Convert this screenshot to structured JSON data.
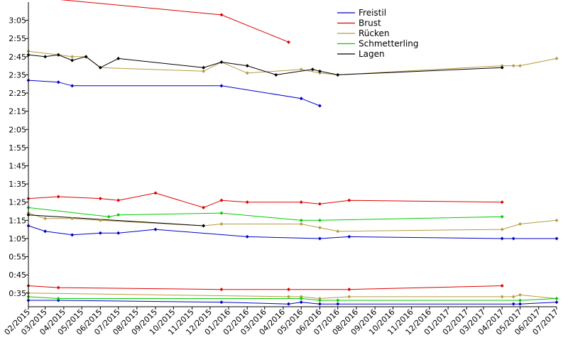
{
  "chart_data": {
    "type": "line",
    "xlabel": "",
    "ylabel": "",
    "x_ticks": [
      "02/2015",
      "03/2015",
      "04/2015",
      "05/2015",
      "06/2015",
      "07/2015",
      "08/2015",
      "09/2015",
      "10/2015",
      "11/2015",
      "12/2015",
      "01/2016",
      "02/2016",
      "03/2016",
      "04/2016",
      "05/2016",
      "06/2016",
      "07/2016",
      "08/2016",
      "09/2016",
      "10/2016",
      "11/2016",
      "12/2016",
      "01/2017",
      "02/2017",
      "03/2017",
      "04/2017",
      "05/2017",
      "06/2017",
      "07/2017"
    ],
    "y_ticks": [
      "0:35",
      "0:45",
      "0:55",
      "1:05",
      "1:15",
      "1:25",
      "1:35",
      "1:45",
      "1:55",
      "2:05",
      "2:15",
      "2:25",
      "2:35",
      "2:45",
      "2:55",
      "3:05"
    ],
    "x_range": [
      "2015-02-01",
      "2017-07-01"
    ],
    "y_range_seconds": [
      27.5,
      195
    ],
    "grid": false,
    "legend_position": "top-right",
    "legend": [
      "Freistil",
      "Brust",
      "Rücken",
      "Schmetterling",
      "Lagen"
    ],
    "series": [
      {
        "name": "Freistil",
        "color": "#0000cc",
        "points": [
          [
            "2015-02-01",
            152
          ],
          [
            "2015-03-23",
            151
          ],
          [
            "2015-04-15",
            149
          ],
          [
            "2015-12-20",
            149
          ],
          [
            "2016-05-01",
            142
          ],
          [
            "2016-06-01",
            138
          ]
        ]
      },
      {
        "name": "Brust",
        "color": "#e00000",
        "points": [
          [
            "2015-02-01",
            198
          ],
          [
            "2015-12-20",
            188
          ],
          [
            "2016-04-10",
            173
          ]
        ]
      },
      {
        "name": "Rücken",
        "color": "#b89a40",
        "points": [
          [
            "2015-02-01",
            168
          ],
          [
            "2015-03-23",
            166
          ],
          [
            "2015-04-15",
            165
          ],
          [
            "2015-05-08",
            165
          ],
          [
            "2015-06-01",
            159
          ],
          [
            "2015-11-20",
            157
          ],
          [
            "2015-12-20",
            162
          ],
          [
            "2016-02-01",
            156
          ],
          [
            "2016-05-01",
            158
          ],
          [
            "2016-06-01",
            156
          ],
          [
            "2016-07-01",
            155
          ],
          [
            "2017-04-01",
            160
          ],
          [
            "2017-04-20",
            160
          ],
          [
            "2017-05-01",
            160
          ],
          [
            "2017-07-01",
            164
          ]
        ]
      },
      {
        "name": "Lagen",
        "color": "#000000",
        "points": [
          [
            "2015-02-01",
            166
          ],
          [
            "2015-03-01",
            165
          ],
          [
            "2015-03-23",
            166
          ],
          [
            "2015-04-15",
            163
          ],
          [
            "2015-05-08",
            165
          ],
          [
            "2015-06-01",
            159
          ],
          [
            "2015-07-01",
            164
          ],
          [
            "2015-11-20",
            159
          ],
          [
            "2015-12-20",
            162
          ],
          [
            "2016-02-01",
            160
          ],
          [
            "2016-03-20",
            155
          ],
          [
            "2016-05-20",
            158
          ],
          [
            "2016-06-01",
            157
          ],
          [
            "2016-07-01",
            155
          ],
          [
            "2017-04-01",
            159
          ]
        ]
      },
      {
        "name": "Freistil",
        "color": "#0000cc",
        "points": [
          [
            "2015-02-01",
            72
          ],
          [
            "2015-03-01",
            69
          ],
          [
            "2015-04-15",
            67
          ],
          [
            "2015-06-01",
            68
          ],
          [
            "2015-07-01",
            68
          ],
          [
            "2015-09-01",
            70
          ],
          [
            "2016-02-01",
            66
          ],
          [
            "2016-06-01",
            65
          ],
          [
            "2016-07-20",
            66
          ],
          [
            "2017-04-01",
            65
          ],
          [
            "2017-04-20",
            65
          ],
          [
            "2017-07-01",
            65
          ]
        ]
      },
      {
        "name": "Brust",
        "color": "#e00000",
        "points": [
          [
            "2015-02-01",
            87
          ],
          [
            "2015-03-23",
            88
          ],
          [
            "2015-06-01",
            87
          ],
          [
            "2015-07-01",
            86
          ],
          [
            "2015-09-01",
            90
          ],
          [
            "2015-11-20",
            82
          ],
          [
            "2015-12-20",
            86
          ],
          [
            "2016-02-01",
            85
          ],
          [
            "2016-05-01",
            85
          ],
          [
            "2016-06-01",
            84
          ],
          [
            "2016-07-20",
            86
          ],
          [
            "2017-04-01",
            85
          ]
        ]
      },
      {
        "name": "Rücken",
        "color": "#b89a40",
        "points": [
          [
            "2015-02-01",
            79
          ],
          [
            "2015-03-01",
            76
          ],
          [
            "2015-04-15",
            76
          ],
          [
            "2015-06-01",
            75
          ],
          [
            "2015-11-20",
            72
          ],
          [
            "2015-12-20",
            73
          ],
          [
            "2016-05-01",
            73
          ],
          [
            "2016-06-01",
            71
          ],
          [
            "2016-07-01",
            69
          ],
          [
            "2017-04-01",
            70
          ],
          [
            "2017-05-01",
            73
          ],
          [
            "2017-07-01",
            75
          ]
        ]
      },
      {
        "name": "Schmetterling",
        "color": "#00cc00",
        "points": [
          [
            "2015-02-01",
            82
          ],
          [
            "2015-06-15",
            77
          ],
          [
            "2015-07-01",
            78
          ],
          [
            "2015-12-20",
            79
          ],
          [
            "2016-05-01",
            75
          ],
          [
            "2016-06-01",
            75
          ],
          [
            "2017-04-01",
            77
          ]
        ]
      },
      {
        "name": "Lagen",
        "color": "#000000",
        "points": [
          [
            "2015-02-01",
            78
          ],
          [
            "2015-11-20",
            72
          ]
        ]
      },
      {
        "name": "Freistil",
        "color": "#0000cc",
        "points": [
          [
            "2015-02-01",
            31
          ],
          [
            "2015-03-23",
            31
          ],
          [
            "2015-12-20",
            30
          ],
          [
            "2016-04-10",
            29
          ],
          [
            "2016-05-01",
            30
          ],
          [
            "2016-06-01",
            29
          ],
          [
            "2016-07-01",
            29
          ],
          [
            "2017-04-20",
            29
          ],
          [
            "2017-05-01",
            29
          ],
          [
            "2017-07-01",
            30
          ]
        ]
      },
      {
        "name": "Brust",
        "color": "#e00000",
        "points": [
          [
            "2015-02-01",
            39
          ],
          [
            "2015-03-23",
            38
          ],
          [
            "2015-12-20",
            37
          ],
          [
            "2016-04-10",
            37
          ],
          [
            "2016-07-20",
            37
          ],
          [
            "2017-04-01",
            39
          ]
        ]
      },
      {
        "name": "Rücken",
        "color": "#b89a40",
        "points": [
          [
            "2015-02-01",
            35
          ],
          [
            "2016-04-10",
            33
          ],
          [
            "2016-05-01",
            33
          ],
          [
            "2016-06-01",
            32
          ],
          [
            "2016-07-20",
            33
          ],
          [
            "2017-04-01",
            33
          ],
          [
            "2017-04-20",
            33
          ],
          [
            "2017-05-01",
            34
          ],
          [
            "2017-07-01",
            32
          ]
        ]
      },
      {
        "name": "Schmetterling",
        "color": "#00cc00",
        "points": [
          [
            "2015-02-01",
            33
          ],
          [
            "2015-03-23",
            32
          ],
          [
            "2016-05-01",
            32
          ],
          [
            "2016-06-01",
            31
          ],
          [
            "2016-07-01",
            31
          ],
          [
            "2017-05-01",
            31
          ],
          [
            "2017-07-01",
            32
          ]
        ]
      },
      {
        "name": "Lagen",
        "color": "#000000",
        "points": []
      }
    ]
  }
}
